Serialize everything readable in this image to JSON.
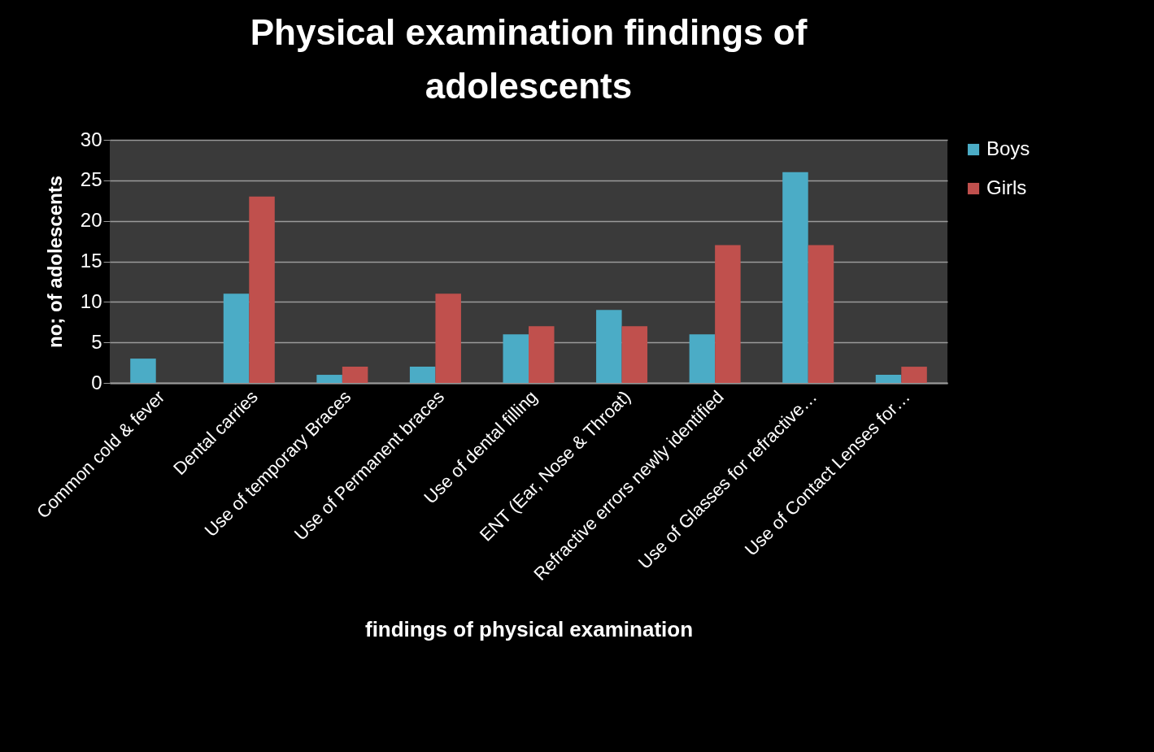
{
  "chart_data": {
    "type": "bar",
    "title": "Physical examination findings of adolescents",
    "xlabel": "findings of physical examination",
    "ylabel": "no; of adolescents",
    "categories": [
      "Common cold & fever",
      "Dental carries",
      "Use of temporary Braces",
      "Use of Permanent braces",
      "Use of dental filling",
      "ENT (Ear, Nose & Throat)",
      "Refractive errors newly identified",
      "Use of Glasses for refractive…",
      "Use of Contact Lenses for…"
    ],
    "series": [
      {
        "name": "Boys",
        "color": "#4bacc6",
        "values": [
          3,
          11,
          1,
          2,
          6,
          9,
          6,
          26,
          1
        ]
      },
      {
        "name": "Girls",
        "color": "#c0504d",
        "values": [
          0,
          23,
          2,
          11,
          7,
          7,
          17,
          17,
          2
        ]
      }
    ],
    "ylim": [
      0,
      30
    ],
    "yticks": [
      0,
      5,
      10,
      15,
      20,
      25,
      30
    ],
    "grid": "y",
    "legend": "right"
  }
}
